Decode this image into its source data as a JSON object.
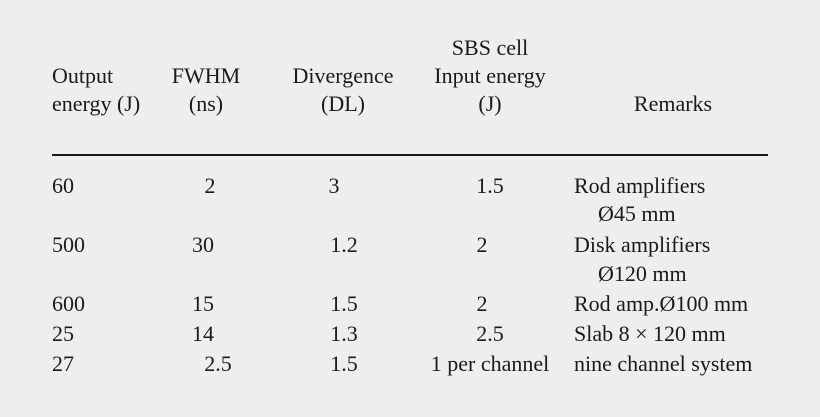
{
  "headers": {
    "output_energy": [
      "Output",
      "energy (J)"
    ],
    "fwhm": [
      "FWHM",
      "(ns)"
    ],
    "divergence": [
      "Divergence",
      "(DL)"
    ],
    "sbs": [
      "SBS cell",
      "Input energy",
      "(J)"
    ],
    "remarks": [
      "Remarks"
    ]
  },
  "rows": [
    {
      "output": "60",
      "fwhm": "2",
      "divergence": "3",
      "input": "1.5",
      "remarks": [
        "Rod amplifiers",
        "Ø45 mm"
      ]
    },
    {
      "output": "500",
      "fwhm": "30",
      "divergence": "1.2",
      "input": "2",
      "remarks": [
        "Disk amplifiers",
        "Ø120 mm"
      ]
    },
    {
      "output": "600",
      "fwhm": "15",
      "divergence": "1.5",
      "input": "2",
      "remarks": [
        "Rod amp.Ø100 mm"
      ]
    },
    {
      "output": "25",
      "fwhm": "14",
      "divergence": "1.3",
      "input": "2.5",
      "remarks": [
        "Slab 8 × 120 mm"
      ]
    },
    {
      "output": "27",
      "fwhm": "2.5",
      "divergence": "1.5",
      "input": "1 per channel",
      "remarks": [
        "nine channel system"
      ]
    }
  ]
}
